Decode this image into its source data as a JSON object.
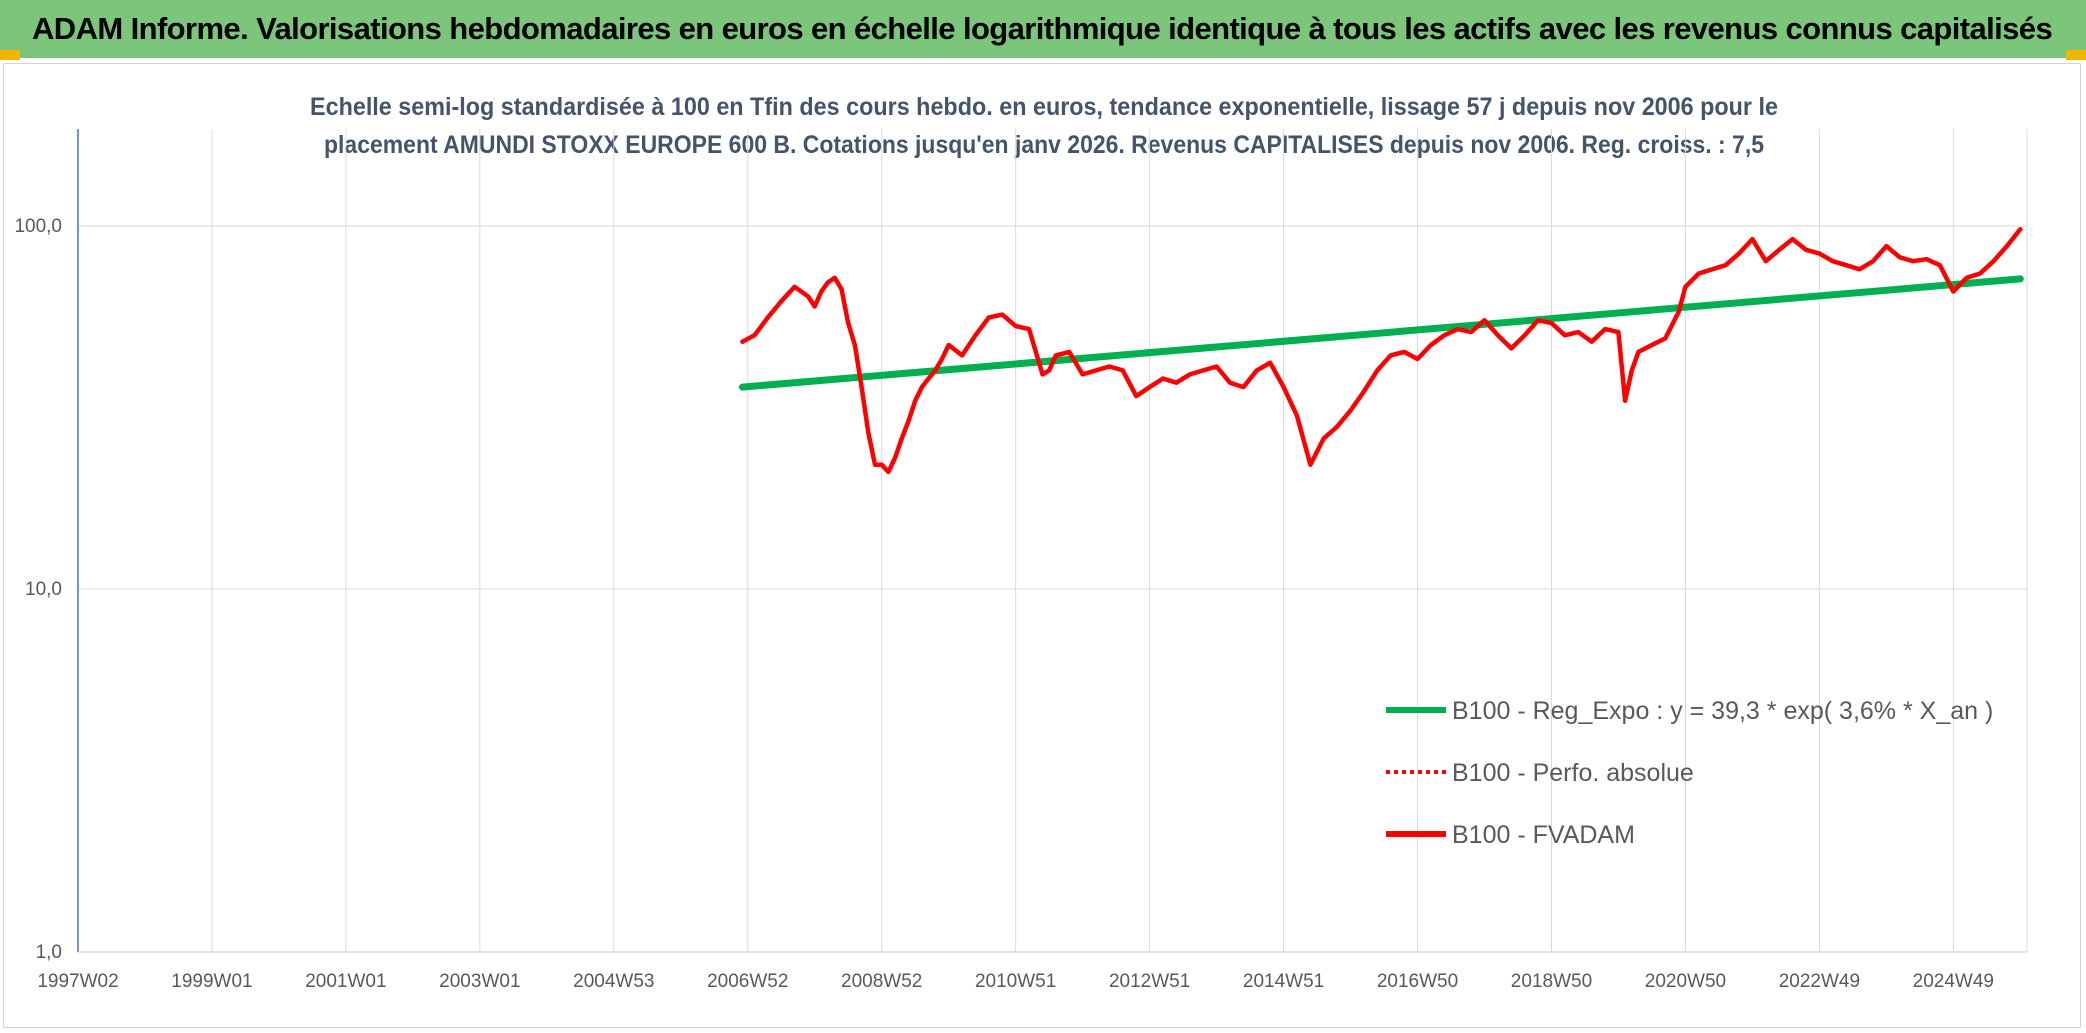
{
  "header": {
    "title": "ADAM Informe. Valorisations hebdomadaires en euros en échelle logarithmique identique à tous les actifs avec les revenus connus capitalisés"
  },
  "colors": {
    "header_bg": "#7bc67b",
    "corner_accent": "#f2b500",
    "fvadam": "#ff0000",
    "reg_expo": "#00b050",
    "gridline": "#d9d9d9",
    "title_text": "#44546a"
  },
  "chart_data": {
    "type": "line",
    "title_lines": [
      "Echelle semi-log standardisée à 100 en Tfin des cours hebdo. en euros, tendance exponentielle, lissage 57 j depuis nov 2006 pour le",
      "placement AMUNDI STOXX EUROPE 600 B. Cotations jusqu'en janv 2026. Revenus CAPITALISES depuis nov 2006. Reg. croiss. : 7,5"
    ],
    "y_scale": "log",
    "ylim": [
      1,
      185
    ],
    "xlim": [
      1997.0,
      2026.1
    ],
    "x_tick_labels": [
      "1997W02",
      "1999W01",
      "2001W01",
      "2003W01",
      "2004W53",
      "2006W52",
      "2008W52",
      "2010W51",
      "2012W51",
      "2014W51",
      "2016W50",
      "2018W50",
      "2020W50",
      "2022W49",
      "2024W49"
    ],
    "x_tick_positions": [
      1997.0,
      1999.0,
      2001.0,
      2003.0,
      2005.0,
      2007.0,
      2009.0,
      2011.0,
      2013.0,
      2015.0,
      2017.0,
      2019.0,
      2021.0,
      2023.0,
      2025.0
    ],
    "y_ticks": [
      1,
      10,
      100
    ],
    "y_tick_labels": [
      "1,0",
      "10,0",
      "100,0"
    ],
    "grid": true,
    "legend_position": "bottom-right",
    "series": [
      {
        "name": "B100 - Reg_Expo : y = 39,3 * exp( 3,6% *  X_an )",
        "color": "#00b050",
        "style": "solid",
        "x": [
          2006.92,
          2026.0
        ],
        "y": [
          36.0,
          71.5
        ]
      },
      {
        "name": "B100 - Perfo. absolue",
        "color": "#ff0000",
        "style": "dotted",
        "x": [],
        "y": []
      },
      {
        "name": "B100 - FVADAM",
        "color": "#ff0000",
        "style": "solid",
        "x": [
          2006.92,
          2007.1,
          2007.3,
          2007.5,
          2007.7,
          2007.9,
          2008.0,
          2008.1,
          2008.2,
          2008.3,
          2008.4,
          2008.5,
          2008.6,
          2008.7,
          2008.8,
          2008.9,
          2009.0,
          2009.1,
          2009.2,
          2009.3,
          2009.4,
          2009.5,
          2009.6,
          2009.7,
          2009.8,
          2009.9,
          2010.0,
          2010.2,
          2010.4,
          2010.6,
          2010.8,
          2011.0,
          2011.2,
          2011.4,
          2011.5,
          2011.6,
          2011.8,
          2012.0,
          2012.2,
          2012.4,
          2012.6,
          2012.8,
          2013.0,
          2013.2,
          2013.4,
          2013.6,
          2013.8,
          2014.0,
          2014.2,
          2014.4,
          2014.6,
          2014.8,
          2015.0,
          2015.2,
          2015.4,
          2015.6,
          2015.8,
          2016.0,
          2016.2,
          2016.4,
          2016.6,
          2016.8,
          2017.0,
          2017.2,
          2017.4,
          2017.6,
          2017.8,
          2018.0,
          2018.2,
          2018.4,
          2018.6,
          2018.8,
          2019.0,
          2019.2,
          2019.4,
          2019.6,
          2019.8,
          2020.0,
          2020.1,
          2020.2,
          2020.3,
          2020.5,
          2020.7,
          2020.9,
          2021.0,
          2021.2,
          2021.4,
          2021.6,
          2021.8,
          2022.0,
          2022.2,
          2022.4,
          2022.6,
          2022.8,
          2023.0,
          2023.2,
          2023.4,
          2023.6,
          2023.8,
          2024.0,
          2024.2,
          2024.4,
          2024.6,
          2024.8,
          2025.0,
          2025.2,
          2025.4,
          2025.6,
          2025.8,
          2026.0
        ],
        "y": [
          48,
          50,
          56,
          62,
          68,
          64,
          60,
          66,
          70,
          72,
          67,
          54,
          47,
          36,
          27,
          22,
          22,
          21,
          23,
          26,
          29,
          33,
          36,
          38,
          40,
          43,
          47,
          44,
          50,
          56,
          57,
          53,
          52,
          39,
          40,
          44,
          45,
          39,
          40,
          41,
          40,
          34,
          36,
          38,
          37,
          39,
          40,
          41,
          37,
          36,
          40,
          42,
          36,
          30,
          22,
          26,
          28,
          31,
          35,
          40,
          44,
          45,
          43,
          47,
          50,
          52,
          51,
          55,
          50,
          46,
          50,
          55,
          54,
          50,
          51,
          48,
          52,
          51,
          33,
          40,
          45,
          47,
          49,
          58,
          68,
          74,
          76,
          78,
          84,
          92,
          80,
          86,
          92,
          86,
          84,
          80,
          78,
          76,
          80,
          88,
          82,
          80,
          81,
          78,
          66,
          72,
          74,
          80,
          88,
          98
        ]
      }
    ]
  }
}
